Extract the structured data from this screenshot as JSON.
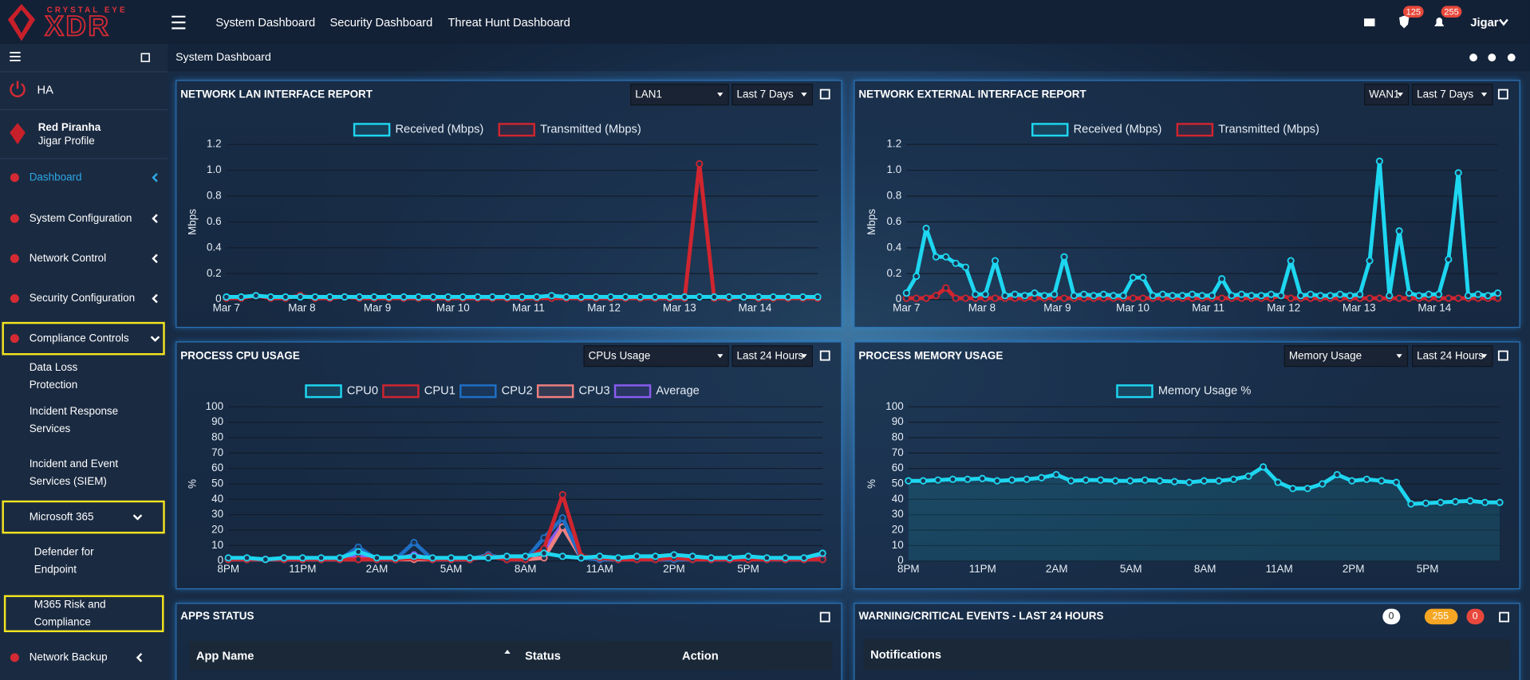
{
  "logo": {
    "brand": "CRYSTAL EYE",
    "product": "XDR"
  },
  "top_nav": [
    "System Dashboard",
    "Security Dashboard",
    "Threat Hunt Dashboard"
  ],
  "alerts": {
    "shield_badge": 125,
    "bell_badge": 255
  },
  "user": "Jigar",
  "sidebar": {
    "status": "HA",
    "org": "Red Piranha",
    "profile": "Jigar Profile",
    "menu": [
      {
        "label": "Dashboard",
        "active": true
      },
      {
        "label": "System Configuration"
      },
      {
        "label": "Network Control"
      },
      {
        "label": "Security Configuration"
      },
      {
        "label": "Compliance Controls",
        "highlighted": true,
        "expanded": true,
        "children": [
          {
            "label": "Data Loss Protection"
          },
          {
            "label": "Incident Response Services"
          },
          {
            "label": "Incident and Event Services (SIEM)"
          },
          {
            "label": "Microsoft 365",
            "highlighted": true,
            "expanded": true,
            "children": [
              {
                "label": "Defender for Endpoint"
              },
              {
                "label": "M365 Risk and Compliance",
                "highlighted": true
              }
            ]
          }
        ]
      },
      {
        "label": "Network Backup"
      }
    ]
  },
  "breadcrumb": "System Dashboard",
  "panels": [
    {
      "title": "NETWORK LAN INTERFACE REPORT",
      "selects": [
        "LAN1",
        "Last 7 Days"
      ]
    },
    {
      "title": "NETWORK EXTERNAL INTERFACE REPORT",
      "selects": [
        "WAN1",
        "Last 7 Days"
      ]
    },
    {
      "title": "PROCESS CPU USAGE",
      "selects": [
        "CPUs Usage",
        "Last 24 Hours"
      ]
    },
    {
      "title": "PROCESS MEMORY USAGE",
      "selects": [
        "Memory Usage",
        "Last 24 Hours"
      ]
    }
  ],
  "apps_status": {
    "title": "APPS STATUS",
    "columns": [
      "App Name",
      "Status",
      "Action"
    ]
  },
  "events": {
    "title": "WARNING/CRITICAL EVENTS - LAST 24 HOURS",
    "badges": [
      {
        "count": 0,
        "color": "#ffffff"
      },
      {
        "count": 255,
        "color": "#f5a623"
      },
      {
        "count": 0,
        "color": "#e8483b"
      }
    ],
    "header": "Notifications"
  },
  "charts": [
    {
      "type": "line",
      "y_label": "Mbps",
      "ylim": [
        0,
        1.2
      ],
      "yticks": [
        0,
        0.2,
        0.4,
        0.6,
        0.8,
        {
          "value": 1,
          "label": "1.0"
        },
        1.2
      ],
      "grid": true,
      "x_labels": [
        "Mar 7",
        "Mar 8",
        "Mar 9",
        "Mar 10",
        "Mar 11",
        "Mar 12",
        "Mar 13",
        "Mar 14"
      ],
      "series": [
        {
          "name": "Received (Mbps)",
          "color": "#1ed6f0",
          "values": [
            0.02,
            0.02,
            0.03,
            0.02,
            0.02,
            0.02,
            0.02,
            0.02,
            0.02,
            0.02,
            0.02,
            0.02,
            0.02,
            0.02,
            0.02,
            0.02,
            0.02,
            0.02,
            0.02,
            0.02,
            0.02,
            0.02,
            0.03,
            0.02,
            0.02,
            0.02,
            0.02,
            0.02,
            0.02,
            0.02,
            0.02,
            0.02,
            0.02,
            0.02,
            0.02,
            0.02,
            0.02,
            0.02,
            0.02,
            0.02,
            0.02
          ]
        },
        {
          "name": "Transmitted (Mbps)",
          "color": "#d0252f",
          "values": [
            0.01,
            0.01,
            0.03,
            0.01,
            0.01,
            0.03,
            0.01,
            0.01,
            0.02,
            0.01,
            0.01,
            0.01,
            0.01,
            0.01,
            0.01,
            0.01,
            0.01,
            0.01,
            0.01,
            0.01,
            0.01,
            0.01,
            0.01,
            0.01,
            0.01,
            0.01,
            0.01,
            0.01,
            0.01,
            0.01,
            0.01,
            0.01,
            1.05,
            0.01,
            0.01,
            0.02,
            0.01,
            0.01,
            0.01,
            0.01,
            0.01
          ]
        }
      ]
    },
    {
      "type": "line",
      "y_label": "Mbps",
      "ylim": [
        0,
        1.2
      ],
      "yticks": [
        0,
        0.2,
        0.4,
        0.6,
        0.8,
        {
          "value": 1,
          "label": "1.0"
        },
        1.2
      ],
      "grid": true,
      "x_labels": [
        "Mar 7",
        "Mar 8",
        "Mar 9",
        "Mar 10",
        "Mar 11",
        "Mar 12",
        "Mar 13",
        "Mar 14"
      ],
      "series": [
        {
          "name": "Received (Mbps)",
          "color": "#1ed6f0",
          "values": [
            0.05,
            0.18,
            0.55,
            0.33,
            0.33,
            0.28,
            0.25,
            0.04,
            0.04,
            0.3,
            0.03,
            0.04,
            0.03,
            0.05,
            0.03,
            0.04,
            0.33,
            0.03,
            0.04,
            0.03,
            0.04,
            0.03,
            0.03,
            0.17,
            0.17,
            0.03,
            0.04,
            0.03,
            0.03,
            0.04,
            0.03,
            0.03,
            0.16,
            0.03,
            0.04,
            0.03,
            0.03,
            0.04,
            0.03,
            0.3,
            0.03,
            0.04,
            0.03,
            0.03,
            0.04,
            0.03,
            0.04,
            0.3,
            1.07,
            0.03,
            0.53,
            0.05,
            0.03,
            0.04,
            0.04,
            0.31,
            0.98,
            0.03,
            0.04,
            0.03,
            0.05
          ]
        },
        {
          "name": "Transmitted (Mbps)",
          "color": "#d0252f",
          "values": [
            0.01,
            0.01,
            0.01,
            0.03,
            0.09,
            0.01,
            0.01,
            0.01,
            0.01,
            0.01,
            0.01,
            0.01,
            0.01,
            0.01,
            0.01,
            0.01,
            0.01,
            0.01,
            0.01,
            0.01,
            0.01,
            0.01,
            0.01,
            0.01,
            0.01,
            0.01,
            0.01,
            0.01,
            0.01,
            0.01,
            0.01,
            0.01,
            0.01,
            0.01,
            0.01,
            0.01,
            0.01,
            0.01,
            0.03,
            0.01,
            0.01,
            0.01,
            0.01,
            0.01,
            0.01,
            0.01,
            0.01,
            0.01,
            0.01,
            0.01,
            0.01,
            0.01,
            0.01,
            0.01,
            0.01,
            0.01,
            0.01,
            0.01,
            0.01,
            0.01,
            0.01
          ]
        }
      ]
    },
    {
      "type": "line",
      "y_label": "%",
      "ylim": [
        0,
        100
      ],
      "yticks": [
        0,
        10,
        20,
        30,
        40,
        50,
        60,
        70,
        80,
        90,
        100
      ],
      "grid": true,
      "x_labels": [
        "8PM",
        "11PM",
        "2AM",
        "5AM",
        "8AM",
        "11AM",
        "2PM",
        "5PM"
      ],
      "series": [
        {
          "name": "CPU0",
          "color": "#1ed6f0",
          "values": [
            2,
            2,
            1,
            2,
            2,
            2,
            2,
            6,
            2,
            2,
            3,
            2,
            2,
            2,
            2,
            3,
            3,
            5,
            3,
            2,
            3,
            2,
            3,
            3,
            4,
            3,
            2,
            2,
            3,
            2,
            2,
            2,
            5
          ]
        },
        {
          "name": "CPU1",
          "color": "#d0252f",
          "values": [
            1,
            1,
            1,
            1,
            1,
            1,
            1,
            1,
            1,
            1,
            2,
            1,
            1,
            1,
            3,
            1,
            1,
            8,
            43,
            3,
            2,
            1,
            1,
            1,
            2,
            1,
            1,
            1,
            1,
            1,
            1,
            1,
            1
          ]
        },
        {
          "name": "CPU2",
          "color": "#1f6fc5",
          "values": [
            1,
            1,
            1,
            1,
            1,
            1,
            1,
            9,
            1,
            1,
            12,
            1,
            1,
            1,
            4,
            1,
            1,
            15,
            28,
            2,
            1,
            1,
            1,
            1,
            1,
            1,
            1,
            1,
            1,
            1,
            1,
            1,
            1
          ]
        },
        {
          "name": "CPU3",
          "color": "#f08080",
          "values": [
            1,
            1,
            1,
            1,
            1,
            1,
            1,
            1,
            1,
            1,
            1,
            1,
            1,
            1,
            4,
            1,
            1,
            2,
            22,
            2,
            1,
            1,
            1,
            1,
            1,
            1,
            1,
            1,
            1,
            1,
            1,
            1,
            1
          ]
        },
        {
          "name": "Average",
          "color": "#8a5cf0",
          "values": [
            1,
            1,
            1,
            1,
            1,
            1,
            1,
            4,
            1,
            1,
            4,
            1,
            1,
            1,
            3,
            1,
            1,
            7,
            24,
            2,
            2,
            1,
            2,
            2,
            2,
            2,
            1,
            1,
            2,
            1,
            1,
            1,
            2
          ]
        }
      ]
    },
    {
      "type": "area",
      "y_label": "%",
      "ylim": [
        0,
        100
      ],
      "yticks": [
        0,
        10,
        20,
        30,
        40,
        50,
        60,
        70,
        80,
        90,
        100
      ],
      "grid": true,
      "x_labels": [
        "8PM",
        "11PM",
        "2AM",
        "5AM",
        "8AM",
        "11AM",
        "2PM",
        "5PM"
      ],
      "series": [
        {
          "name": "Memory Usage %",
          "color": "#1ed6f0",
          "values": [
            52,
            52,
            52.5,
            53,
            53,
            53.5,
            52,
            52.5,
            53,
            54,
            56,
            52,
            52.5,
            52.5,
            52,
            52,
            52.5,
            52,
            51.5,
            51,
            52,
            52,
            53,
            55,
            61,
            51,
            47,
            47,
            50,
            56,
            52,
            53,
            52,
            51,
            37,
            37.5,
            38,
            38.5,
            39,
            38,
            38
          ]
        }
      ]
    }
  ]
}
